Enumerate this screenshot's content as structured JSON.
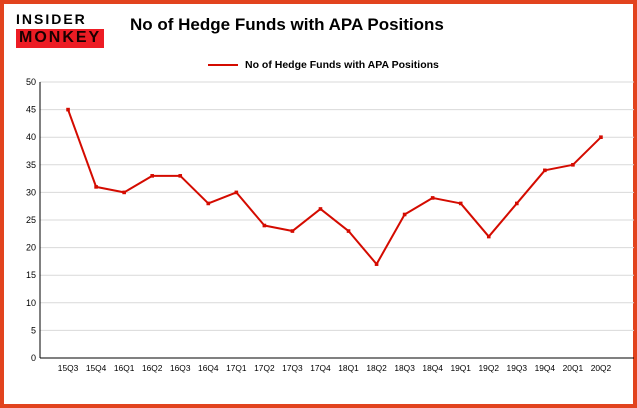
{
  "logo": {
    "line1": "INSIDER",
    "line2": "MONKEY"
  },
  "header": {
    "title": "No of Hedge Funds with APA Positions"
  },
  "legend": {
    "label": "No of Hedge Funds with APA Positions"
  },
  "colors": {
    "frame": "#e2431e",
    "line": "#d40b00",
    "grid": "#d9d9d9",
    "logo_red": "#ed1c24",
    "axis": "#000000"
  },
  "chart_data": {
    "type": "line",
    "title": "No of Hedge Funds with APA Positions",
    "xlabel": "",
    "ylabel": "",
    "ylim": [
      0,
      50
    ],
    "ytick_step": 5,
    "grid": true,
    "legend_position": "top",
    "categories": [
      "15Q3",
      "15Q4",
      "16Q1",
      "16Q2",
      "16Q3",
      "16Q4",
      "17Q1",
      "17Q2",
      "17Q3",
      "17Q4",
      "18Q1",
      "18Q2",
      "18Q3",
      "18Q4",
      "19Q1",
      "19Q2",
      "19Q3",
      "19Q4",
      "20Q1",
      "20Q2"
    ],
    "series": [
      {
        "name": "No of Hedge Funds with APA Positions",
        "values": [
          45,
          31,
          30,
          33,
          33,
          28,
          30,
          24,
          23,
          27,
          23,
          17,
          26,
          29,
          28,
          22,
          28,
          34,
          35,
          40
        ]
      }
    ]
  }
}
